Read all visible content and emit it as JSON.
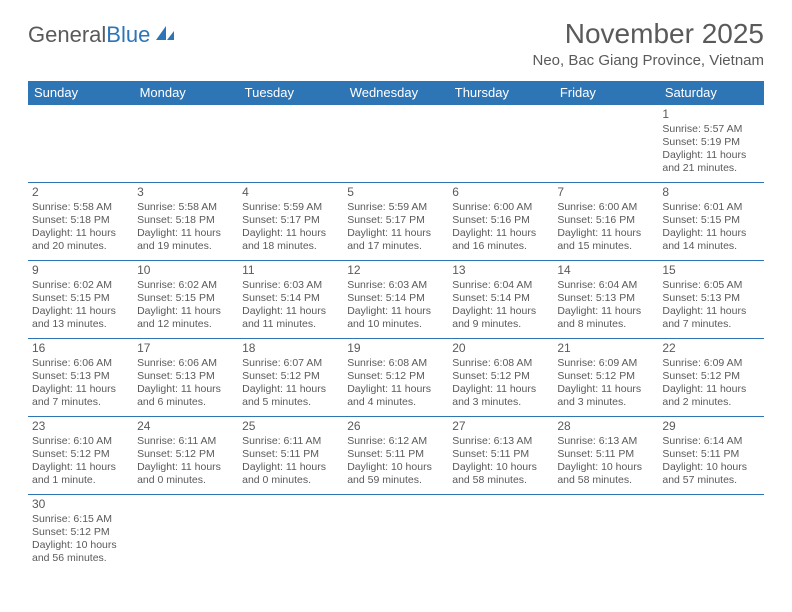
{
  "logo": {
    "text1": "General",
    "text2": "Blue"
  },
  "title": "November 2025",
  "location": "Neo, Bac Giang Province, Vietnam",
  "colors": {
    "header_bg": "#2e75b6",
    "header_text": "#ffffff",
    "text": "#5a5a5a",
    "border": "#2e75b6",
    "background": "#ffffff"
  },
  "weekdays": [
    "Sunday",
    "Monday",
    "Tuesday",
    "Wednesday",
    "Thursday",
    "Friday",
    "Saturday"
  ],
  "weeks": [
    [
      null,
      null,
      null,
      null,
      null,
      null,
      {
        "d": "1",
        "sr": "Sunrise: 5:57 AM",
        "ss": "Sunset: 5:19 PM",
        "dl1": "Daylight: 11 hours",
        "dl2": "and 21 minutes."
      }
    ],
    [
      {
        "d": "2",
        "sr": "Sunrise: 5:58 AM",
        "ss": "Sunset: 5:18 PM",
        "dl1": "Daylight: 11 hours",
        "dl2": "and 20 minutes."
      },
      {
        "d": "3",
        "sr": "Sunrise: 5:58 AM",
        "ss": "Sunset: 5:18 PM",
        "dl1": "Daylight: 11 hours",
        "dl2": "and 19 minutes."
      },
      {
        "d": "4",
        "sr": "Sunrise: 5:59 AM",
        "ss": "Sunset: 5:17 PM",
        "dl1": "Daylight: 11 hours",
        "dl2": "and 18 minutes."
      },
      {
        "d": "5",
        "sr": "Sunrise: 5:59 AM",
        "ss": "Sunset: 5:17 PM",
        "dl1": "Daylight: 11 hours",
        "dl2": "and 17 minutes."
      },
      {
        "d": "6",
        "sr": "Sunrise: 6:00 AM",
        "ss": "Sunset: 5:16 PM",
        "dl1": "Daylight: 11 hours",
        "dl2": "and 16 minutes."
      },
      {
        "d": "7",
        "sr": "Sunrise: 6:00 AM",
        "ss": "Sunset: 5:16 PM",
        "dl1": "Daylight: 11 hours",
        "dl2": "and 15 minutes."
      },
      {
        "d": "8",
        "sr": "Sunrise: 6:01 AM",
        "ss": "Sunset: 5:15 PM",
        "dl1": "Daylight: 11 hours",
        "dl2": "and 14 minutes."
      }
    ],
    [
      {
        "d": "9",
        "sr": "Sunrise: 6:02 AM",
        "ss": "Sunset: 5:15 PM",
        "dl1": "Daylight: 11 hours",
        "dl2": "and 13 minutes."
      },
      {
        "d": "10",
        "sr": "Sunrise: 6:02 AM",
        "ss": "Sunset: 5:15 PM",
        "dl1": "Daylight: 11 hours",
        "dl2": "and 12 minutes."
      },
      {
        "d": "11",
        "sr": "Sunrise: 6:03 AM",
        "ss": "Sunset: 5:14 PM",
        "dl1": "Daylight: 11 hours",
        "dl2": "and 11 minutes."
      },
      {
        "d": "12",
        "sr": "Sunrise: 6:03 AM",
        "ss": "Sunset: 5:14 PM",
        "dl1": "Daylight: 11 hours",
        "dl2": "and 10 minutes."
      },
      {
        "d": "13",
        "sr": "Sunrise: 6:04 AM",
        "ss": "Sunset: 5:14 PM",
        "dl1": "Daylight: 11 hours",
        "dl2": "and 9 minutes."
      },
      {
        "d": "14",
        "sr": "Sunrise: 6:04 AM",
        "ss": "Sunset: 5:13 PM",
        "dl1": "Daylight: 11 hours",
        "dl2": "and 8 minutes."
      },
      {
        "d": "15",
        "sr": "Sunrise: 6:05 AM",
        "ss": "Sunset: 5:13 PM",
        "dl1": "Daylight: 11 hours",
        "dl2": "and 7 minutes."
      }
    ],
    [
      {
        "d": "16",
        "sr": "Sunrise: 6:06 AM",
        "ss": "Sunset: 5:13 PM",
        "dl1": "Daylight: 11 hours",
        "dl2": "and 7 minutes."
      },
      {
        "d": "17",
        "sr": "Sunrise: 6:06 AM",
        "ss": "Sunset: 5:13 PM",
        "dl1": "Daylight: 11 hours",
        "dl2": "and 6 minutes."
      },
      {
        "d": "18",
        "sr": "Sunrise: 6:07 AM",
        "ss": "Sunset: 5:12 PM",
        "dl1": "Daylight: 11 hours",
        "dl2": "and 5 minutes."
      },
      {
        "d": "19",
        "sr": "Sunrise: 6:08 AM",
        "ss": "Sunset: 5:12 PM",
        "dl1": "Daylight: 11 hours",
        "dl2": "and 4 minutes."
      },
      {
        "d": "20",
        "sr": "Sunrise: 6:08 AM",
        "ss": "Sunset: 5:12 PM",
        "dl1": "Daylight: 11 hours",
        "dl2": "and 3 minutes."
      },
      {
        "d": "21",
        "sr": "Sunrise: 6:09 AM",
        "ss": "Sunset: 5:12 PM",
        "dl1": "Daylight: 11 hours",
        "dl2": "and 3 minutes."
      },
      {
        "d": "22",
        "sr": "Sunrise: 6:09 AM",
        "ss": "Sunset: 5:12 PM",
        "dl1": "Daylight: 11 hours",
        "dl2": "and 2 minutes."
      }
    ],
    [
      {
        "d": "23",
        "sr": "Sunrise: 6:10 AM",
        "ss": "Sunset: 5:12 PM",
        "dl1": "Daylight: 11 hours",
        "dl2": "and 1 minute."
      },
      {
        "d": "24",
        "sr": "Sunrise: 6:11 AM",
        "ss": "Sunset: 5:12 PM",
        "dl1": "Daylight: 11 hours",
        "dl2": "and 0 minutes."
      },
      {
        "d": "25",
        "sr": "Sunrise: 6:11 AM",
        "ss": "Sunset: 5:11 PM",
        "dl1": "Daylight: 11 hours",
        "dl2": "and 0 minutes."
      },
      {
        "d": "26",
        "sr": "Sunrise: 6:12 AM",
        "ss": "Sunset: 5:11 PM",
        "dl1": "Daylight: 10 hours",
        "dl2": "and 59 minutes."
      },
      {
        "d": "27",
        "sr": "Sunrise: 6:13 AM",
        "ss": "Sunset: 5:11 PM",
        "dl1": "Daylight: 10 hours",
        "dl2": "and 58 minutes."
      },
      {
        "d": "28",
        "sr": "Sunrise: 6:13 AM",
        "ss": "Sunset: 5:11 PM",
        "dl1": "Daylight: 10 hours",
        "dl2": "and 58 minutes."
      },
      {
        "d": "29",
        "sr": "Sunrise: 6:14 AM",
        "ss": "Sunset: 5:11 PM",
        "dl1": "Daylight: 10 hours",
        "dl2": "and 57 minutes."
      }
    ],
    [
      {
        "d": "30",
        "sr": "Sunrise: 6:15 AM",
        "ss": "Sunset: 5:12 PM",
        "dl1": "Daylight: 10 hours",
        "dl2": "and 56 minutes."
      },
      null,
      null,
      null,
      null,
      null,
      null
    ]
  ]
}
